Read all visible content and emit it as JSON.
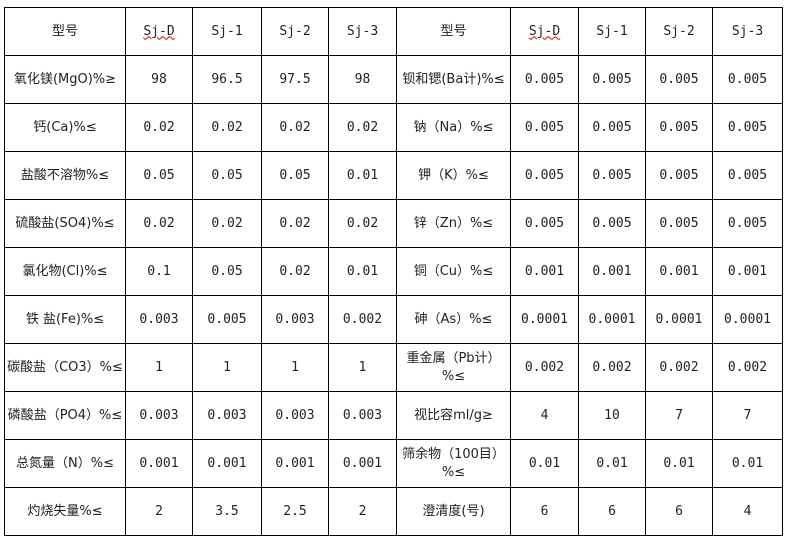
{
  "header": {
    "label": "型号",
    "models": [
      "Sj-D",
      "Sj-1",
      "Sj-2",
      "Sj-3"
    ]
  },
  "rows": [
    {
      "l": {
        "name": "氧化镁(MgO)%≥",
        "values": [
          "98",
          "96.5",
          "97.5",
          "98"
        ]
      },
      "r": {
        "name": "钡和锶(Ba计)%≤",
        "values": [
          "0.005",
          "0.005",
          "0.005",
          "0.005"
        ]
      }
    },
    {
      "l": {
        "name": "钙(Ca)%≤",
        "values": [
          "0.02",
          "0.02",
          "0.02",
          "0.02"
        ]
      },
      "r": {
        "name": "钠（Na）%≤",
        "values": [
          "0.005",
          "0.005",
          "0.005",
          "0.005"
        ]
      }
    },
    {
      "l": {
        "name": "盐酸不溶物%≤",
        "values": [
          "0.05",
          "0.05",
          "0.05",
          "0.01"
        ]
      },
      "r": {
        "name": "钾（K）%≤",
        "values": [
          "0.005",
          "0.005",
          "0.005",
          "0.005"
        ]
      }
    },
    {
      "l": {
        "name": "硫酸盐(SO4)%≤",
        "values": [
          "0.02",
          "0.02",
          "0.02",
          "0.02"
        ]
      },
      "r": {
        "name": "锌（Zn）%≤",
        "values": [
          "0.005",
          "0.005",
          "0.005",
          "0.005"
        ]
      }
    },
    {
      "l": {
        "name": "氯化物(Cl)%≤",
        "values": [
          "0.1",
          "0.05",
          "0.02",
          "0.01"
        ]
      },
      "r": {
        "name": "铜（Cu）%≤",
        "values": [
          "0.001",
          "0.001",
          "0.001",
          "0.001"
        ]
      }
    },
    {
      "l": {
        "name": "铁 盐(Fe)%≤",
        "values": [
          "0.003",
          "0.005",
          "0.003",
          "0.002"
        ]
      },
      "r": {
        "name": "砷（As）%≤",
        "values": [
          "0.0001",
          "0.0001",
          "0.0001",
          "0.0001"
        ]
      }
    },
    {
      "l": {
        "name": "碳酸盐（CO3）%≤",
        "values": [
          "1",
          "1",
          "1",
          "1"
        ]
      },
      "r": {
        "name": "重金属（Pb计）%≤",
        "values": [
          "0.002",
          "0.002",
          "0.002",
          "0.002"
        ]
      }
    },
    {
      "l": {
        "name": "磷酸盐（PO4）%≤",
        "values": [
          "0.003",
          "0.003",
          "0.003",
          "0.003"
        ]
      },
      "r": {
        "name": "视比容ml/g≥",
        "values": [
          "4",
          "10",
          "7",
          "7"
        ]
      }
    },
    {
      "l": {
        "name": "总氮量（N）%≤",
        "values": [
          "0.001",
          "0.001",
          "0.001",
          "0.001"
        ]
      },
      "r": {
        "name": "筛余物（100目）%≤",
        "values": [
          "0.01",
          "0.01",
          "0.01",
          "0.01"
        ]
      }
    },
    {
      "l": {
        "name": "灼烧失量%≤",
        "values": [
          "2",
          "3.5",
          "2.5",
          "2"
        ]
      },
      "r": {
        "name": "澄清度(号)",
        "values": [
          "6",
          "6",
          "6",
          "4"
        ]
      }
    }
  ]
}
